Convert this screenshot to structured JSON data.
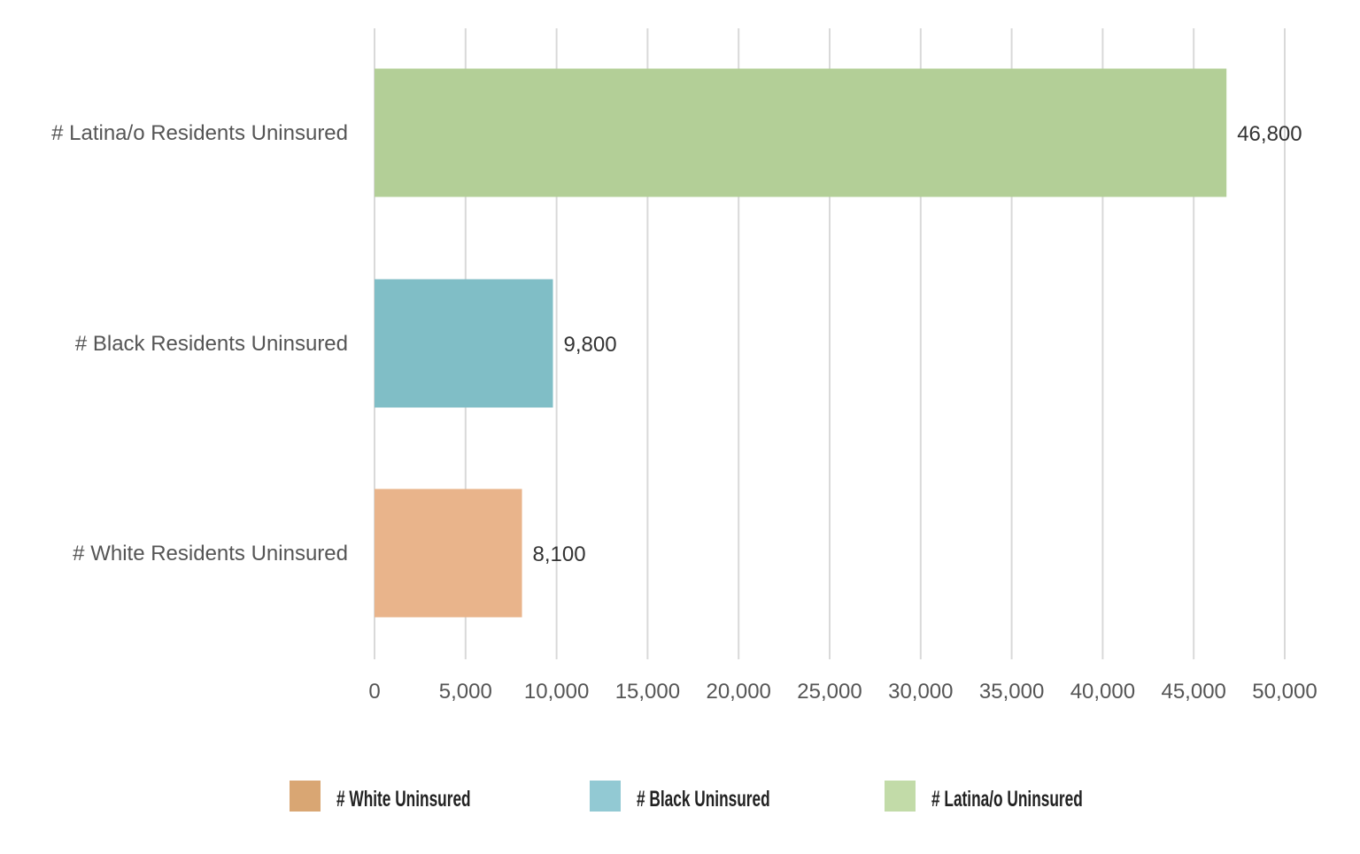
{
  "chart_data": {
    "type": "bar",
    "orientation": "horizontal",
    "categories": [
      "# Latina/o Residents Uninsured",
      "# Black Residents Uninsured",
      "# White Residents Uninsured"
    ],
    "values": [
      46800,
      9800,
      8100
    ],
    "data_labels": [
      "46,800",
      "9,800",
      "8,100"
    ],
    "bar_colors": [
      "#b3cf97",
      "#80bec6",
      "#e9b48b"
    ],
    "xlim": [
      0,
      50000
    ],
    "xticks": [
      0,
      5000,
      10000,
      15000,
      20000,
      25000,
      30000,
      35000,
      40000,
      45000,
      50000
    ],
    "xtick_labels": [
      "0",
      "5,000",
      "10,000",
      "15,000",
      "20,000",
      "25,000",
      "30,000",
      "35,000",
      "40,000",
      "45,000",
      "50,000"
    ],
    "grid": "vertical",
    "legend_position": "bottom",
    "legend": [
      {
        "label": "# White Uninsured",
        "color": "#d9a673"
      },
      {
        "label": "# Black Uninsured",
        "color": "#92c9d3"
      },
      {
        "label": "# Latina/o Uninsured",
        "color": "#c2dba8"
      }
    ]
  }
}
